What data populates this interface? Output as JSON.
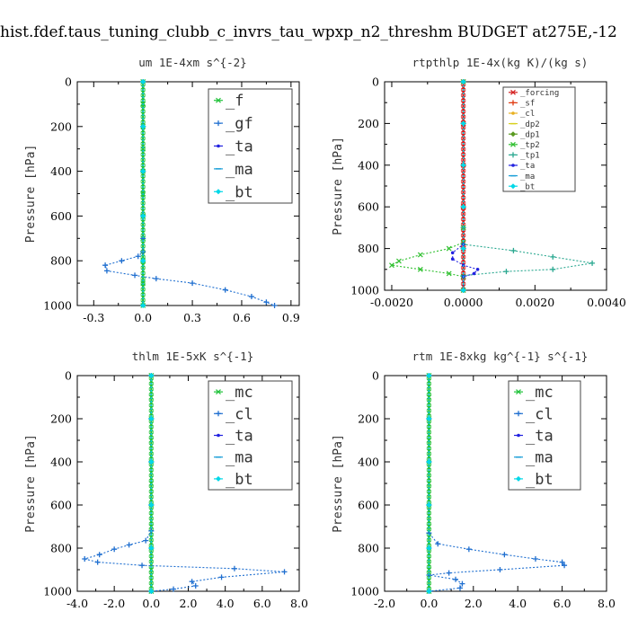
{
  "figure_title": "hist.fdef.taus_tuning_clubb_c_invrs_tau_wpxp_n2_threshm  BUDGET at275E,-12",
  "chart_data": [
    {
      "type": "line",
      "title": "um  1E-4xm s^{-2}",
      "ylabel": "Pressure [hPa]",
      "xlim": [
        -0.4,
        0.95
      ],
      "ylim": [
        1000,
        0
      ],
      "xticks": [
        -0.3,
        0.0,
        0.3,
        0.6,
        0.9
      ],
      "xtick_labels": [
        "-0.3",
        "0.0",
        "0.3",
        "0.6",
        "0.9"
      ],
      "yticks": [
        0,
        200,
        400,
        600,
        800,
        1000
      ],
      "ytick_labels": [
        "0",
        "200",
        "400",
        "600",
        "800",
        "1000"
      ],
      "legend_position": "top-right",
      "legend_font": 17,
      "series": [
        {
          "name": "_f",
          "color": "#22c33c",
          "points": [
            [
              0.0,
              0
            ],
            [
              0.0,
              100
            ],
            [
              0.0,
              200
            ],
            [
              0.0,
              300
            ],
            [
              0.0,
              400
            ],
            [
              0.0,
              500
            ],
            [
              0.0,
              600
            ],
            [
              0.0,
              700
            ],
            [
              0.0,
              800
            ],
            [
              0.0,
              900
            ],
            [
              0.0,
              1000
            ]
          ]
        },
        {
          "name": "_gf",
          "color": "#1f6fd0",
          "points": [
            [
              0.0,
              0
            ],
            [
              0.0,
              200
            ],
            [
              0.0,
              400
            ],
            [
              0.0,
              600
            ],
            [
              0.0,
              700
            ],
            [
              0.0,
              760
            ],
            [
              -0.03,
              780
            ],
            [
              -0.13,
              800
            ],
            [
              -0.23,
              820
            ],
            [
              -0.22,
              845
            ],
            [
              -0.05,
              865
            ],
            [
              0.08,
              880
            ],
            [
              0.3,
              900
            ],
            [
              0.5,
              930
            ],
            [
              0.66,
              960
            ],
            [
              0.75,
              985
            ],
            [
              0.8,
              1000
            ]
          ]
        },
        {
          "name": "_ta",
          "color": "#2222e0",
          "points": [
            [
              0.0,
              0
            ],
            [
              0.0,
              200
            ],
            [
              0.0,
              400
            ],
            [
              0.0,
              600
            ],
            [
              0.0,
              800
            ],
            [
              0.0,
              1000
            ]
          ]
        },
        {
          "name": "_ma",
          "color": "#1b9fd8",
          "points": [
            [
              0.0,
              0
            ],
            [
              0.0,
              200
            ],
            [
              0.0,
              400
            ],
            [
              0.0,
              600
            ],
            [
              0.0,
              800
            ],
            [
              0.0,
              1000
            ]
          ]
        },
        {
          "name": "_bt",
          "color": "#00d8e8",
          "points": [
            [
              0.0,
              0
            ],
            [
              0.0,
              200
            ],
            [
              0.0,
              400
            ],
            [
              0.0,
              600
            ],
            [
              0.0,
              800
            ],
            [
              0.0,
              1000
            ]
          ]
        }
      ]
    },
    {
      "type": "line",
      "title": "rtpthlp  1E-4x(kg K)/(kg s)",
      "ylabel": "Pressure [hPa]",
      "xlim": [
        -0.0022,
        0.004
      ],
      "ylim": [
        1000,
        0
      ],
      "xticks": [
        -0.002,
        0.0,
        0.002,
        0.004
      ],
      "xtick_labels": [
        "-0.0020",
        "0.0000",
        "0.0020",
        "0.0040"
      ],
      "yticks": [
        0,
        200,
        400,
        600,
        800,
        1000
      ],
      "ytick_labels": [
        "0",
        "200",
        "400",
        "600",
        "800",
        "1000"
      ],
      "legend_position": "top-right",
      "legend_font": 9,
      "series": [
        {
          "name": "_forcing",
          "color": "#d42020",
          "points": [
            [
              0.0,
              0
            ],
            [
              0.0,
              200
            ],
            [
              0.0,
              400
            ],
            [
              0.0,
              600
            ],
            [
              0.0,
              800
            ],
            [
              0.0,
              1000
            ]
          ]
        },
        {
          "name": "_sf",
          "color": "#e03a10",
          "points": [
            [
              0.0,
              0
            ],
            [
              0.0,
              200
            ],
            [
              0.0,
              400
            ],
            [
              0.0,
              600
            ],
            [
              0.0,
              800
            ],
            [
              0.0,
              1000
            ]
          ]
        },
        {
          "name": "_cl",
          "color": "#e8b020",
          "points": [
            [
              0.0,
              0
            ],
            [
              0.0,
              200
            ],
            [
              0.0,
              400
            ],
            [
              0.0,
              600
            ],
            [
              0.0,
              800
            ],
            [
              0.0,
              1000
            ]
          ]
        },
        {
          "name": "_dp2",
          "color": "#d8d020",
          "points": [
            [
              0.0,
              0
            ],
            [
              0.0,
              200
            ],
            [
              0.0,
              400
            ],
            [
              0.0,
              600
            ],
            [
              0.0,
              800
            ],
            [
              0.0,
              1000
            ]
          ]
        },
        {
          "name": "_dp1",
          "color": "#5a9a20",
          "points": [
            [
              0.0,
              0
            ],
            [
              0.0,
              200
            ],
            [
              0.0,
              400
            ],
            [
              0.0,
              600
            ],
            [
              0.0,
              800
            ],
            [
              0.0,
              1000
            ]
          ]
        },
        {
          "name": "_tp2",
          "color": "#30c030",
          "points": [
            [
              0.0,
              0
            ],
            [
              0.0,
              700
            ],
            [
              0.0,
              770
            ],
            [
              -0.0004,
              800
            ],
            [
              -0.0012,
              830
            ],
            [
              -0.0018,
              860
            ],
            [
              -0.002,
              880
            ],
            [
              -0.0012,
              900
            ],
            [
              -0.0004,
              920
            ],
            [
              0.0,
              935
            ],
            [
              0.0,
              1000
            ]
          ]
        },
        {
          "name": "_tp1",
          "color": "#2aa890",
          "points": [
            [
              0.0,
              0
            ],
            [
              0.0,
              700
            ],
            [
              0.0,
              780
            ],
            [
              0.0014,
              810
            ],
            [
              0.0025,
              840
            ],
            [
              0.0036,
              870
            ],
            [
              0.0025,
              900
            ],
            [
              0.0012,
              910
            ],
            [
              0.0,
              930
            ],
            [
              0.0,
              1000
            ]
          ]
        },
        {
          "name": "_ta",
          "color": "#2222e0",
          "points": [
            [
              0.0,
              0
            ],
            [
              0.0,
              780
            ],
            [
              -0.0003,
              820
            ],
            [
              -0.0003,
              850
            ],
            [
              0.0,
              880
            ],
            [
              0.0004,
              900
            ],
            [
              0.0003,
              920
            ],
            [
              0.0,
              935
            ],
            [
              0.0,
              1000
            ]
          ]
        },
        {
          "name": "_ma",
          "color": "#1b9fd8",
          "points": [
            [
              0.0,
              0
            ],
            [
              0.0,
              200
            ],
            [
              0.0,
              400
            ],
            [
              0.0,
              600
            ],
            [
              0.0,
              800
            ],
            [
              0.0,
              1000
            ]
          ]
        },
        {
          "name": "_bt",
          "color": "#00d8e8",
          "points": [
            [
              0.0,
              0
            ],
            [
              0.0,
              200
            ],
            [
              0.0,
              400
            ],
            [
              0.0,
              600
            ],
            [
              0.0,
              800
            ],
            [
              0.0,
              1000
            ]
          ]
        }
      ]
    },
    {
      "type": "line",
      "title": "thlm  1E-5xK s^{-1}",
      "ylabel": "Pressure [hPa]",
      "xlim": [
        -4.0,
        8.0
      ],
      "ylim": [
        1000,
        0
      ],
      "xticks": [
        -4.0,
        -2.0,
        0.0,
        2.0,
        4.0,
        6.0,
        8.0
      ],
      "xtick_labels": [
        "-4.0",
        "-2.0",
        "0.0",
        "2.0",
        "4.0",
        "6.0",
        "8.0"
      ],
      "yticks": [
        0,
        200,
        400,
        600,
        800,
        1000
      ],
      "ytick_labels": [
        "0",
        "200",
        "400",
        "600",
        "800",
        "1000"
      ],
      "legend_position": "top-right",
      "legend_font": 17,
      "series": [
        {
          "name": "_mc",
          "color": "#22c33c",
          "points": [
            [
              0.0,
              0
            ],
            [
              0.0,
              100
            ],
            [
              0.0,
              200
            ],
            [
              0.0,
              300
            ],
            [
              0.0,
              400
            ],
            [
              0.0,
              500
            ],
            [
              0.0,
              600
            ],
            [
              0.0,
              700
            ],
            [
              0.0,
              800
            ],
            [
              0.0,
              900
            ],
            [
              0.0,
              1000
            ]
          ]
        },
        {
          "name": "_cl",
          "color": "#1f6fd0",
          "points": [
            [
              0.0,
              0
            ],
            [
              0.0,
              200
            ],
            [
              0.0,
              400
            ],
            [
              0.0,
              600
            ],
            [
              0.0,
              720
            ],
            [
              -0.3,
              765
            ],
            [
              -1.2,
              785
            ],
            [
              -2.0,
              805
            ],
            [
              -2.8,
              830
            ],
            [
              -3.6,
              850
            ],
            [
              -2.9,
              865
            ],
            [
              -0.5,
              880
            ],
            [
              4.5,
              895
            ],
            [
              7.2,
              910
            ],
            [
              3.8,
              935
            ],
            [
              2.2,
              955
            ],
            [
              2.4,
              975
            ],
            [
              1.2,
              990
            ],
            [
              0.0,
              1000
            ]
          ]
        },
        {
          "name": "_ta",
          "color": "#2222e0",
          "points": [
            [
              0.0,
              0
            ],
            [
              0.0,
              200
            ],
            [
              0.0,
              400
            ],
            [
              0.0,
              600
            ],
            [
              0.0,
              800
            ],
            [
              0.0,
              1000
            ]
          ]
        },
        {
          "name": "_ma",
          "color": "#1b9fd8",
          "points": [
            [
              0.0,
              0
            ],
            [
              0.0,
              200
            ],
            [
              0.0,
              400
            ],
            [
              0.0,
              600
            ],
            [
              0.0,
              800
            ],
            [
              0.0,
              1000
            ]
          ]
        },
        {
          "name": "_bt",
          "color": "#00d8e8",
          "points": [
            [
              0.0,
              0
            ],
            [
              0.0,
              200
            ],
            [
              0.0,
              400
            ],
            [
              0.0,
              600
            ],
            [
              0.0,
              800
            ],
            [
              0.0,
              1000
            ]
          ]
        }
      ]
    },
    {
      "type": "line",
      "title": "rtm  1E-8xkg kg^{-1} s^{-1}",
      "ylabel": "Pressure [hPa]",
      "xlim": [
        -2.0,
        8.0
      ],
      "ylim": [
        1000,
        0
      ],
      "xticks": [
        -2.0,
        0.0,
        2.0,
        4.0,
        6.0,
        8.0
      ],
      "xtick_labels": [
        "-2.0",
        "0.0",
        "2.0",
        "4.0",
        "6.0",
        "8.0"
      ],
      "yticks": [
        0,
        200,
        400,
        600,
        800,
        1000
      ],
      "ytick_labels": [
        "0",
        "200",
        "400",
        "600",
        "800",
        "1000"
      ],
      "legend_position": "top-right",
      "legend_font": 17,
      "series": [
        {
          "name": "_mc",
          "color": "#22c33c",
          "points": [
            [
              0.0,
              0
            ],
            [
              0.0,
              100
            ],
            [
              0.0,
              200
            ],
            [
              0.0,
              300
            ],
            [
              0.0,
              400
            ],
            [
              0.0,
              500
            ],
            [
              0.0,
              600
            ],
            [
              0.0,
              700
            ],
            [
              0.0,
              800
            ],
            [
              0.0,
              900
            ],
            [
              0.0,
              1000
            ]
          ]
        },
        {
          "name": "_cl",
          "color": "#1f6fd0",
          "points": [
            [
              0.0,
              0
            ],
            [
              0.0,
              200
            ],
            [
              0.0,
              400
            ],
            [
              0.0,
              600
            ],
            [
              0.0,
              730
            ],
            [
              0.4,
              780
            ],
            [
              1.8,
              805
            ],
            [
              3.4,
              830
            ],
            [
              4.8,
              850
            ],
            [
              6.0,
              865
            ],
            [
              6.1,
              880
            ],
            [
              3.2,
              900
            ],
            [
              0.9,
              915
            ],
            [
              0.0,
              925
            ],
            [
              1.2,
              945
            ],
            [
              1.5,
              965
            ],
            [
              1.4,
              985
            ],
            [
              0.0,
              1000
            ]
          ]
        },
        {
          "name": "_ta",
          "color": "#2222e0",
          "points": [
            [
              0.0,
              0
            ],
            [
              0.0,
              200
            ],
            [
              0.0,
              400
            ],
            [
              0.0,
              600
            ],
            [
              0.0,
              800
            ],
            [
              0.0,
              1000
            ]
          ]
        },
        {
          "name": "_ma",
          "color": "#1b9fd8",
          "points": [
            [
              0.0,
              0
            ],
            [
              0.0,
              200
            ],
            [
              0.0,
              400
            ],
            [
              0.0,
              600
            ],
            [
              0.0,
              800
            ],
            [
              0.0,
              1000
            ]
          ]
        },
        {
          "name": "_bt",
          "color": "#00d8e8",
          "points": [
            [
              0.0,
              0
            ],
            [
              0.0,
              200
            ],
            [
              0.0,
              400
            ],
            [
              0.0,
              600
            ],
            [
              0.0,
              800
            ],
            [
              0.0,
              1000
            ]
          ]
        }
      ]
    }
  ]
}
